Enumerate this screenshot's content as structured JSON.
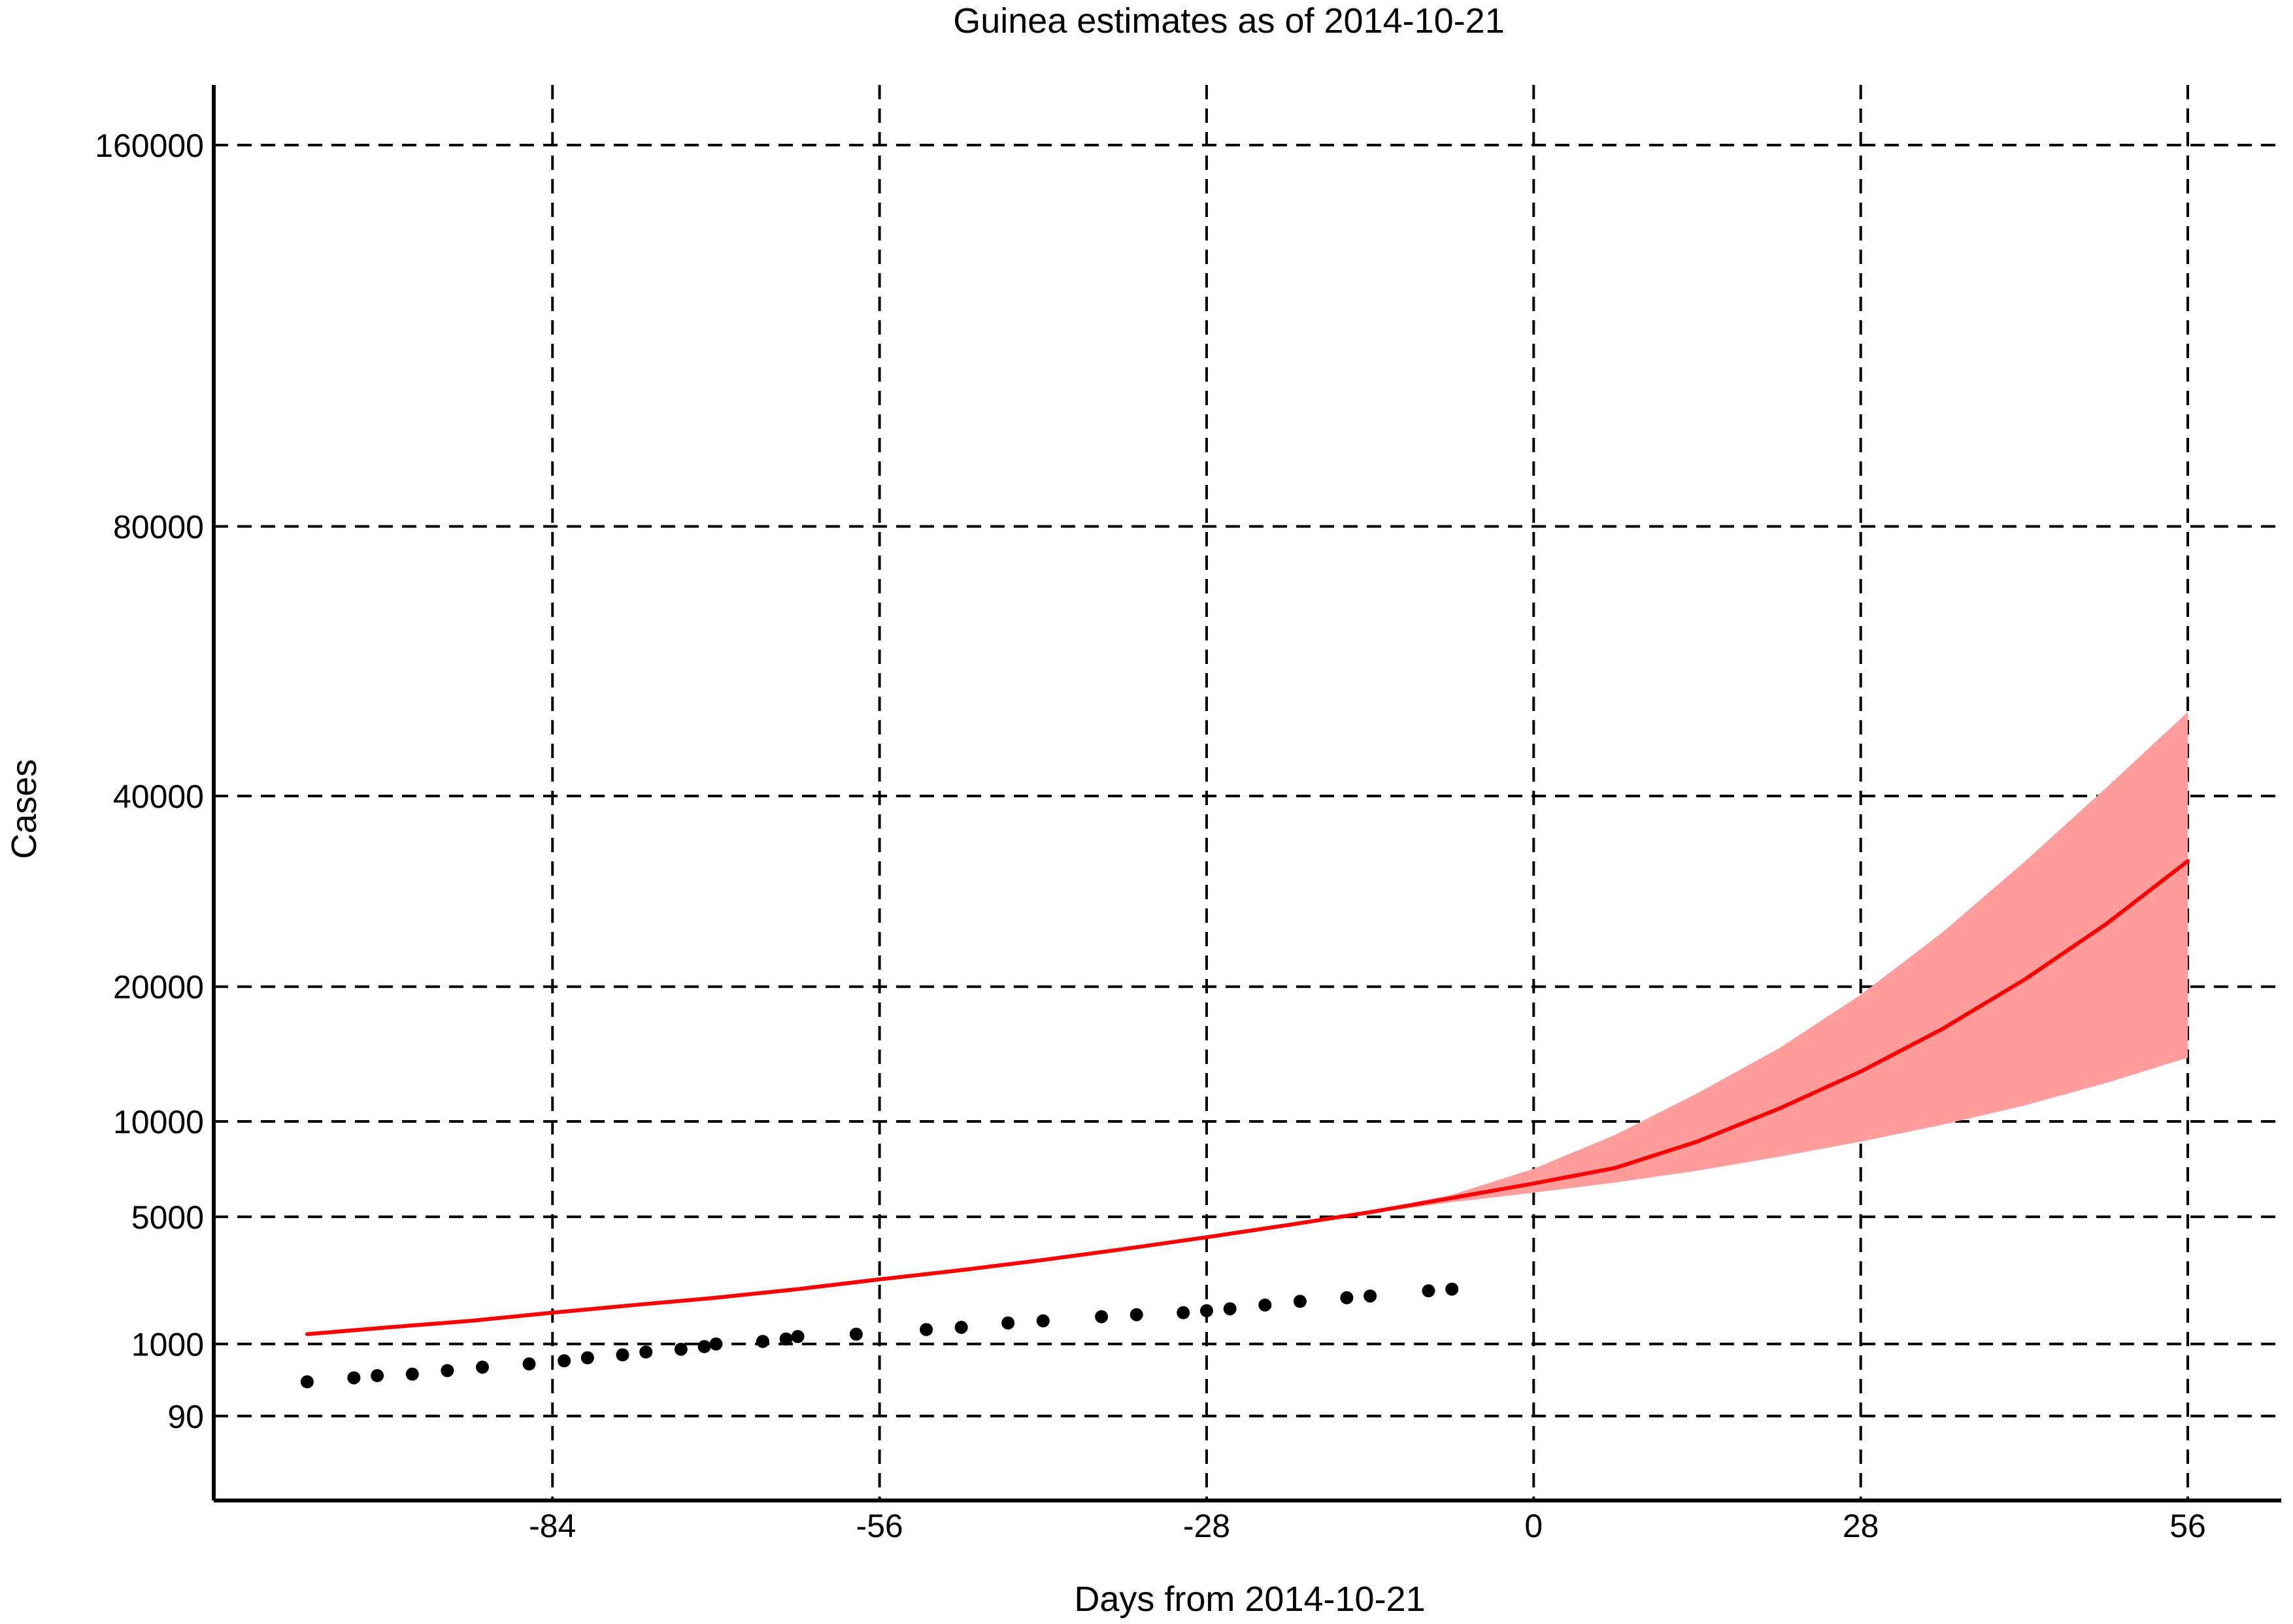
{
  "chart_data": {
    "type": "line",
    "title": "Guinea estimates as of 2014-10-21",
    "xlabel": "Days from 2014-10-21",
    "ylabel": "Cases",
    "y_scale": "sqrt",
    "x_ticks": [
      -84,
      -56,
      -28,
      0,
      28,
      56
    ],
    "x_tick_labels": [
      "-84",
      "-56",
      "-28",
      "0",
      "28",
      "56"
    ],
    "y_ticks": [
      90,
      1000,
      5000,
      10000,
      20000,
      40000,
      80000,
      160000
    ],
    "y_tick_labels": [
      "90",
      "1000",
      "5000",
      "10000",
      "20000",
      "40000",
      "80000",
      "160000"
    ],
    "xlim": [
      -113,
      64
    ],
    "ylim": [
      -2000,
      168000
    ],
    "grid": true,
    "colors": {
      "line": "#ff0000",
      "band": "#ff9d9d",
      "points": "#000000",
      "grid": "#000000",
      "axis": "#000000"
    },
    "series": [
      {
        "kind": "points",
        "points": [
          [
            -105,
            400
          ],
          [
            -101,
            450
          ],
          [
            -99,
            480
          ],
          [
            -96,
            500
          ],
          [
            -93,
            550
          ],
          [
            -90,
            600
          ],
          [
            -86,
            650
          ],
          [
            -83,
            700
          ],
          [
            -81,
            750
          ],
          [
            -78,
            800
          ],
          [
            -76,
            850
          ],
          [
            -73,
            900
          ],
          [
            -71,
            950
          ],
          [
            -70,
            1000
          ],
          [
            -66,
            1050
          ],
          [
            -64,
            1100
          ],
          [
            -63,
            1150
          ],
          [
            -58,
            1200
          ],
          [
            -52,
            1300
          ],
          [
            -49,
            1350
          ],
          [
            -45,
            1450
          ],
          [
            -42,
            1500
          ],
          [
            -37,
            1600
          ],
          [
            -34,
            1650
          ],
          [
            -30,
            1700
          ],
          [
            -28,
            1750
          ],
          [
            -26,
            1800
          ],
          [
            -23,
            1900
          ],
          [
            -20,
            2000
          ],
          [
            -16,
            2100
          ],
          [
            -14,
            2150
          ],
          [
            -9,
            2300
          ],
          [
            -7,
            2350
          ]
        ]
      },
      {
        "kind": "line",
        "points": [
          [
            -105,
            1200
          ],
          [
            -98,
            1350
          ],
          [
            -91,
            1500
          ],
          [
            -84,
            1700
          ],
          [
            -77,
            1900
          ],
          [
            -70,
            2100
          ],
          [
            -63,
            2350
          ],
          [
            -56,
            2650
          ],
          [
            -49,
            2950
          ],
          [
            -42,
            3300
          ],
          [
            -35,
            3700
          ],
          [
            -28,
            4150
          ],
          [
            -21,
            4650
          ],
          [
            -14,
            5200
          ],
          [
            -7,
            5850
          ],
          [
            0,
            6550
          ],
          [
            7,
            7350
          ],
          [
            14,
            8800
          ],
          [
            21,
            10800
          ],
          [
            28,
            13300
          ],
          [
            35,
            16500
          ],
          [
            42,
            20600
          ],
          [
            49,
            25800
          ],
          [
            56,
            32400
          ]
        ]
      },
      {
        "kind": "band",
        "upper": [
          [
            -105,
            1200
          ],
          [
            -98,
            1350
          ],
          [
            -91,
            1500
          ],
          [
            -84,
            1700
          ],
          [
            -77,
            1900
          ],
          [
            -70,
            2100
          ],
          [
            -63,
            2350
          ],
          [
            -56,
            2650
          ],
          [
            -49,
            2950
          ],
          [
            -42,
            3300
          ],
          [
            -35,
            3700
          ],
          [
            -28,
            4150
          ],
          [
            -21,
            4650
          ],
          [
            -14,
            5250
          ],
          [
            -7,
            6000
          ],
          [
            0,
            7300
          ],
          [
            7,
            9200
          ],
          [
            14,
            11800
          ],
          [
            21,
            15000
          ],
          [
            28,
            19300
          ],
          [
            35,
            25000
          ],
          [
            42,
            32300
          ],
          [
            49,
            41000
          ],
          [
            56,
            51000
          ]
        ],
        "lower": [
          [
            -105,
            1200
          ],
          [
            -98,
            1350
          ],
          [
            -91,
            1500
          ],
          [
            -84,
            1700
          ],
          [
            -77,
            1900
          ],
          [
            -70,
            2100
          ],
          [
            -63,
            2350
          ],
          [
            -56,
            2650
          ],
          [
            -49,
            2950
          ],
          [
            -42,
            3300
          ],
          [
            -35,
            3700
          ],
          [
            -28,
            4150
          ],
          [
            -21,
            4650
          ],
          [
            -14,
            5150
          ],
          [
            -7,
            5650
          ],
          [
            0,
            6100
          ],
          [
            7,
            6600
          ],
          [
            14,
            7200
          ],
          [
            21,
            7950
          ],
          [
            28,
            8800
          ],
          [
            35,
            9800
          ],
          [
            42,
            11000
          ],
          [
            49,
            12500
          ],
          [
            56,
            14300
          ]
        ]
      }
    ]
  }
}
